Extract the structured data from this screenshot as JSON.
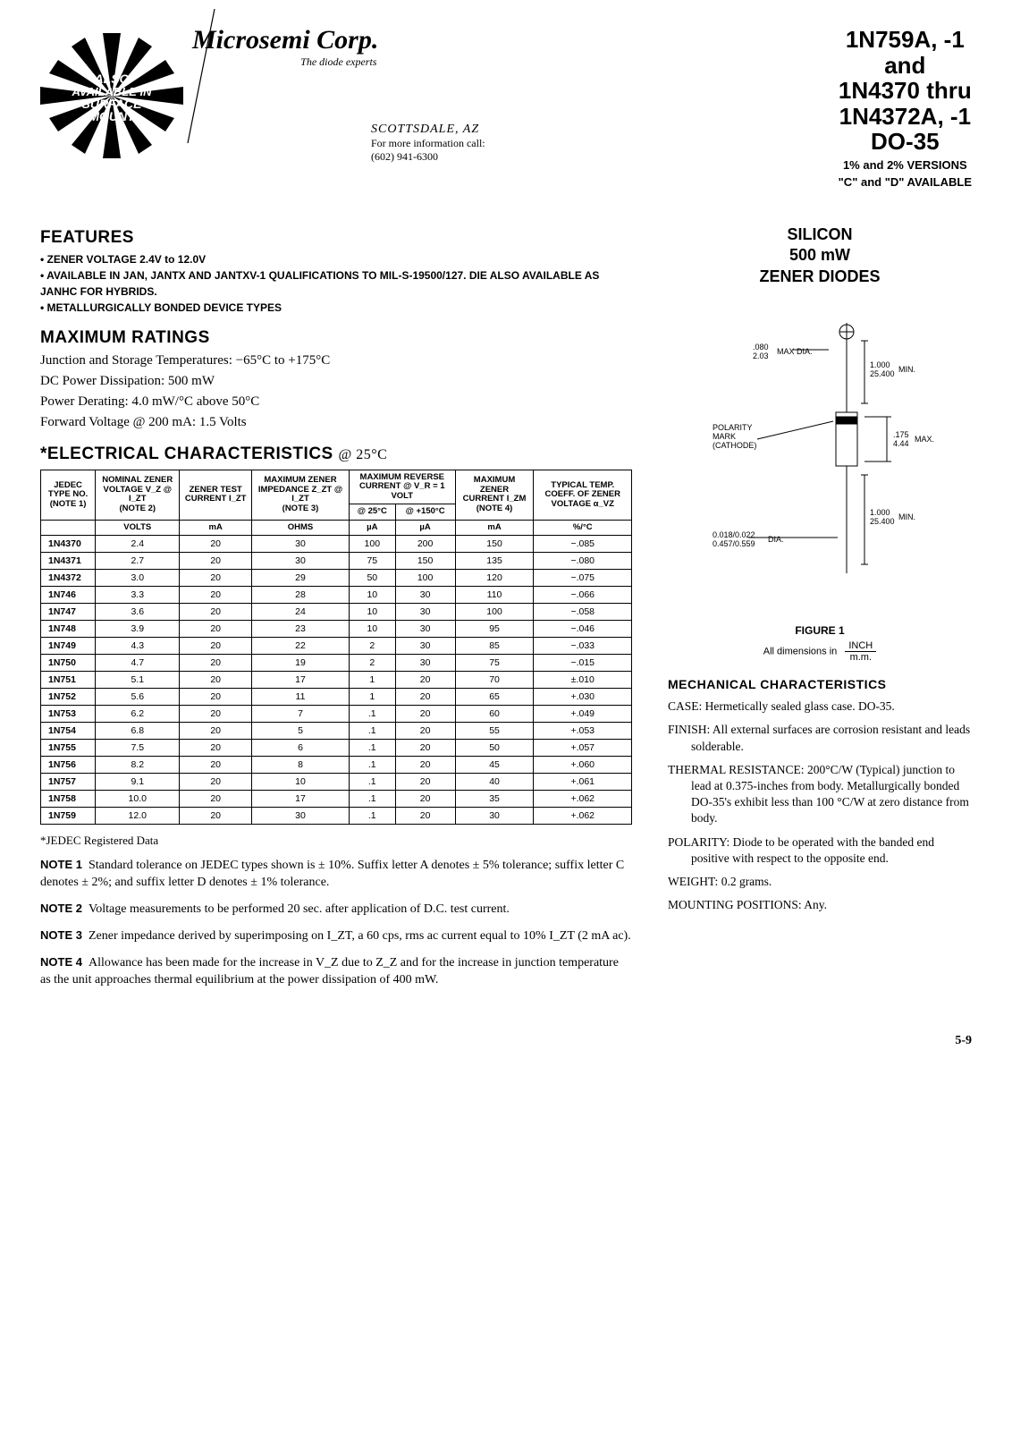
{
  "header": {
    "company_name": "Microsemi Corp.",
    "company_tagline": "The diode experts",
    "starburst_text": "ALSO AVAILABLE IN SURFACE MOUNT",
    "location_city": "SCOTTSDALE, AZ",
    "location_info": "For more information call:",
    "location_phone": "(602) 941-6300",
    "title_l1": "1N759A, -1",
    "title_l2": "and",
    "title_l3": "1N4370 thru",
    "title_l4": "1N4372A, -1",
    "title_l5": "DO-35",
    "subtitle_l1": "1% and 2% VERSIONS",
    "subtitle_l2": "\"C\" and \"D\" AVAILABLE"
  },
  "sidebar": {
    "heading_l1": "SILICON",
    "heading_l2": "500 mW",
    "heading_l3": "ZENER DIODES"
  },
  "features": {
    "heading": "FEATURES",
    "items": [
      "ZENER VOLTAGE 2.4V to 12.0V",
      "AVAILABLE IN JAN, JANTX AND JANTXV-1 QUALIFICATIONS TO MIL-S-19500/127. DIE ALSO AVAILABLE AS JANHC FOR HYBRIDS.",
      "METALLURGICALLY BONDED DEVICE TYPES"
    ]
  },
  "max_ratings": {
    "heading": "MAXIMUM RATINGS",
    "lines": [
      "Junction and Storage Temperatures: −65°C to +175°C",
      "DC Power Dissipation: 500 mW",
      "Power Derating: 4.0 mW/°C above 50°C",
      "Forward Voltage @ 200 mA: 1.5 Volts"
    ]
  },
  "elec": {
    "heading": "*ELECTRICAL CHARACTERISTICS",
    "heading_cond": "@ 25°C",
    "col_headers": {
      "c1_l1": "JEDEC TYPE NO.",
      "c1_l2": "(NOTE 1)",
      "c2_l1": "NOMINAL ZENER VOLTAGE V_Z @ I_ZT",
      "c2_l2": "(NOTE 2)",
      "c3_l1": "ZENER TEST CURRENT I_ZT",
      "c4_l1": "MAXIMUM ZENER IMPEDANCE Z_ZT @ I_ZT",
      "c4_l2": "(NOTE 3)",
      "c5_l1": "MAXIMUM REVERSE CURRENT @ V_R = 1 VOLT",
      "c5a": "@ 25°C",
      "c5b": "@ +150°C",
      "c6_l1": "MAXIMUM ZENER CURRENT I_ZM",
      "c6_l2": "(NOTE 4)",
      "c7_l1": "TYPICAL TEMP. COEFF. OF ZENER VOLTAGE α_VZ"
    },
    "units": [
      "",
      "VOLTS",
      "mA",
      "OHMS",
      "µA",
      "µA",
      "mA",
      "%/°C"
    ],
    "rows": [
      [
        "1N4370",
        "2.4",
        "20",
        "30",
        "100",
        "200",
        "150",
        "−.085"
      ],
      [
        "1N4371",
        "2.7",
        "20",
        "30",
        "75",
        "150",
        "135",
        "−.080"
      ],
      [
        "1N4372",
        "3.0",
        "20",
        "29",
        "50",
        "100",
        "120",
        "−.075"
      ],
      [
        "1N746",
        "3.3",
        "20",
        "28",
        "10",
        "30",
        "110",
        "−.066"
      ],
      [
        "1N747",
        "3.6",
        "20",
        "24",
        "10",
        "30",
        "100",
        "−.058"
      ],
      [
        "1N748",
        "3.9",
        "20",
        "23",
        "10",
        "30",
        "95",
        "−.046"
      ],
      [
        "1N749",
        "4.3",
        "20",
        "22",
        "2",
        "30",
        "85",
        "−.033"
      ],
      [
        "1N750",
        "4.7",
        "20",
        "19",
        "2",
        "30",
        "75",
        "−.015"
      ],
      [
        "1N751",
        "5.1",
        "20",
        "17",
        "1",
        "20",
        "70",
        "±.010"
      ],
      [
        "1N752",
        "5.6",
        "20",
        "11",
        "1",
        "20",
        "65",
        "+.030"
      ],
      [
        "1N753",
        "6.2",
        "20",
        "7",
        ".1",
        "20",
        "60",
        "+.049"
      ],
      [
        "1N754",
        "6.8",
        "20",
        "5",
        ".1",
        "20",
        "55",
        "+.053"
      ],
      [
        "1N755",
        "7.5",
        "20",
        "6",
        ".1",
        "20",
        "50",
        "+.057"
      ],
      [
        "1N756",
        "8.2",
        "20",
        "8",
        ".1",
        "20",
        "45",
        "+.060"
      ],
      [
        "1N757",
        "9.1",
        "20",
        "10",
        ".1",
        "20",
        "40",
        "+.061"
      ],
      [
        "1N758",
        "10.0",
        "20",
        "17",
        ".1",
        "20",
        "35",
        "+.062"
      ],
      [
        "1N759",
        "12.0",
        "20",
        "30",
        ".1",
        "20",
        "30",
        "+.062"
      ]
    ],
    "group_starts": [
      0,
      3,
      6,
      10,
      14
    ]
  },
  "jedec_reg": "*JEDEC Registered Data",
  "notes": {
    "n1": {
      "label": "NOTE 1",
      "text": "Standard tolerance on JEDEC types shown is ± 10%. Suffix letter A denotes ± 5% tolerance; suffix letter C denotes ± 2%; and suffix letter D denotes ± 1% tolerance."
    },
    "n2": {
      "label": "NOTE 2",
      "text": "Voltage measurements to be performed 20 sec. after application of D.C. test current."
    },
    "n3": {
      "label": "NOTE 3",
      "text": "Zener impedance derived by superimposing on I_ZT, a 60 cps, rms ac current equal to 10% I_ZT (2 mA ac)."
    },
    "n4": {
      "label": "NOTE 4",
      "text": "Allowance has been made for the increase in V_Z due to Z_Z and for the increase in junction temperature as the unit approaches thermal equilibrium at the power dissipation of 400 mW."
    }
  },
  "figure": {
    "dim1_l1": ".080",
    "dim1_l2": "2.03",
    "dim1_suf": "MAX DIA.",
    "dim2_l1": "1.000",
    "dim2_l2": "25.400",
    "dim2_suf": "MIN.",
    "dim3_l1": ".175",
    "dim3_l2": "4.44",
    "dim3_suf": "MAX.",
    "dim4_l1": "1.000",
    "dim4_l2": "25.400",
    "dim4_suf": "MIN.",
    "dim5_l1": "0.018/0.022",
    "dim5_l2": "0.457/0.559",
    "dim5_suf": "DIA.",
    "polarity": "POLARITY MARK (CATHODE)",
    "caption": "FIGURE 1",
    "dim_note_pre": "All dimensions in",
    "dim_note_top": "INCH",
    "dim_note_bot": "m.m."
  },
  "mech": {
    "heading": "MECHANICAL CHARACTERISTICS",
    "items": [
      {
        "lbl": "CASE:",
        "txt": "Hermetically sealed glass case. DO-35."
      },
      {
        "lbl": "FINISH:",
        "txt": "All external surfaces are corrosion resistant and leads solderable."
      },
      {
        "lbl": "THERMAL RESISTANCE:",
        "txt": "200°C/W (Typical) junction to lead at 0.375-inches from body. Metallurgically bonded DO-35's exhibit less than 100 °C/W at zero distance from body."
      },
      {
        "lbl": "POLARITY:",
        "txt": "Diode to be operated with the banded end positive with respect to the opposite end."
      },
      {
        "lbl": "WEIGHT:",
        "txt": "0.2 grams."
      },
      {
        "lbl": "MOUNTING POSITIONS:",
        "txt": "Any."
      }
    ]
  },
  "pagenum": "5-9"
}
